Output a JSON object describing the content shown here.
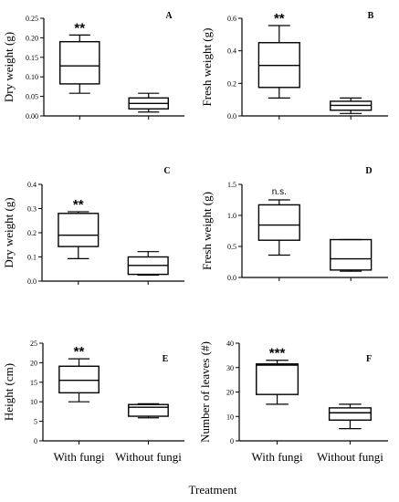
{
  "figure": {
    "xlabel": "Treatment"
  },
  "chart_data": [
    {
      "type": "box",
      "panel": "A",
      "ylabel": "Dry weight (g)",
      "ylim": [
        0,
        0.25
      ],
      "yticks": [
        "0.00",
        "0.05",
        "0.10",
        "0.15",
        "0.20",
        "0.25"
      ],
      "ytick_values": [
        0,
        0.05,
        0.1,
        0.15,
        0.2,
        0.25
      ],
      "categories": [
        "With fungi",
        "Without fungi"
      ],
      "boxes": [
        {
          "min": 0.058,
          "q1": 0.082,
          "median": 0.128,
          "q3": 0.19,
          "max": 0.207,
          "annotation": "**"
        },
        {
          "min": 0.01,
          "q1": 0.018,
          "median": 0.032,
          "q3": 0.046,
          "max": 0.058,
          "annotation": ""
        }
      ]
    },
    {
      "type": "box",
      "panel": "B",
      "ylabel": "Fresh weight  (g)",
      "ylim": [
        0,
        0.6
      ],
      "yticks": [
        "0.0",
        "0.2",
        "0.4",
        "0.6"
      ],
      "ytick_values": [
        0,
        0.2,
        0.4,
        0.6
      ],
      "categories": [
        "With fungi",
        "Without fungi"
      ],
      "boxes": [
        {
          "min": 0.11,
          "q1": 0.175,
          "median": 0.31,
          "q3": 0.45,
          "max": 0.555,
          "annotation": "**"
        },
        {
          "min": 0.015,
          "q1": 0.035,
          "median": 0.065,
          "q3": 0.09,
          "max": 0.11,
          "annotation": ""
        }
      ]
    },
    {
      "type": "box",
      "panel": "C",
      "ylabel": "Dry weight (g)",
      "ylim": [
        0,
        0.4
      ],
      "yticks": [
        "0.0",
        "0.1",
        "0.2",
        "0.3",
        "0.4"
      ],
      "ytick_values": [
        0,
        0.1,
        0.2,
        0.3,
        0.4
      ],
      "categories": [
        "With fungi",
        "Without fungi"
      ],
      "boxes": [
        {
          "min": 0.093,
          "q1": 0.143,
          "median": 0.19,
          "q3": 0.28,
          "max": 0.287,
          "annotation": "**"
        },
        {
          "min": 0.025,
          "q1": 0.028,
          "median": 0.065,
          "q3": 0.1,
          "max": 0.122,
          "annotation": ""
        }
      ]
    },
    {
      "type": "box",
      "panel": "D",
      "ylabel": "Fresh weight  (g)",
      "ylim": [
        0,
        1.5
      ],
      "yticks": [
        "0.0",
        "0.5",
        "1.0",
        "1.5"
      ],
      "ytick_values": [
        0,
        0.5,
        1.0,
        1.5
      ],
      "categories": [
        "With fungi",
        "Without fungi"
      ],
      "boxes": [
        {
          "min": 0.36,
          "q1": 0.6,
          "median": 0.845,
          "q3": 1.17,
          "max": 1.25,
          "annotation": "n.s."
        },
        {
          "min": 0.1,
          "q1": 0.12,
          "median": 0.3,
          "q3": 0.61,
          "max": 0.61,
          "annotation": ""
        }
      ]
    },
    {
      "type": "box",
      "panel": "E",
      "ylabel": "Height  (cm)",
      "ylim": [
        0,
        25
      ],
      "yticks": [
        "0",
        "5",
        "10",
        "15",
        "20",
        "25"
      ],
      "ytick_values": [
        0,
        5,
        10,
        15,
        20,
        25
      ],
      "categories": [
        "With fungi",
        "Without fungi"
      ],
      "boxes": [
        {
          "min": 10,
          "q1": 12.3,
          "median": 15.5,
          "q3": 19.1,
          "max": 21,
          "annotation": "**"
        },
        {
          "min": 5.9,
          "q1": 6.3,
          "median": 8.6,
          "q3": 9.3,
          "max": 9.5,
          "annotation": ""
        }
      ]
    },
    {
      "type": "box",
      "panel": "F",
      "ylabel": "Number of leaves (#)",
      "ylim": [
        0,
        40
      ],
      "yticks": [
        "0",
        "10",
        "20",
        "30",
        "40"
      ],
      "ytick_values": [
        0,
        10,
        20,
        30,
        40
      ],
      "categories": [
        "With fungi",
        "Without fungi"
      ],
      "boxes": [
        {
          "min": 15,
          "q1": 19,
          "median": 31,
          "q3": 31.5,
          "max": 33,
          "annotation": "***"
        },
        {
          "min": 5,
          "q1": 8.5,
          "median": 11.5,
          "q3": 13.5,
          "max": 15,
          "annotation": ""
        }
      ]
    }
  ]
}
